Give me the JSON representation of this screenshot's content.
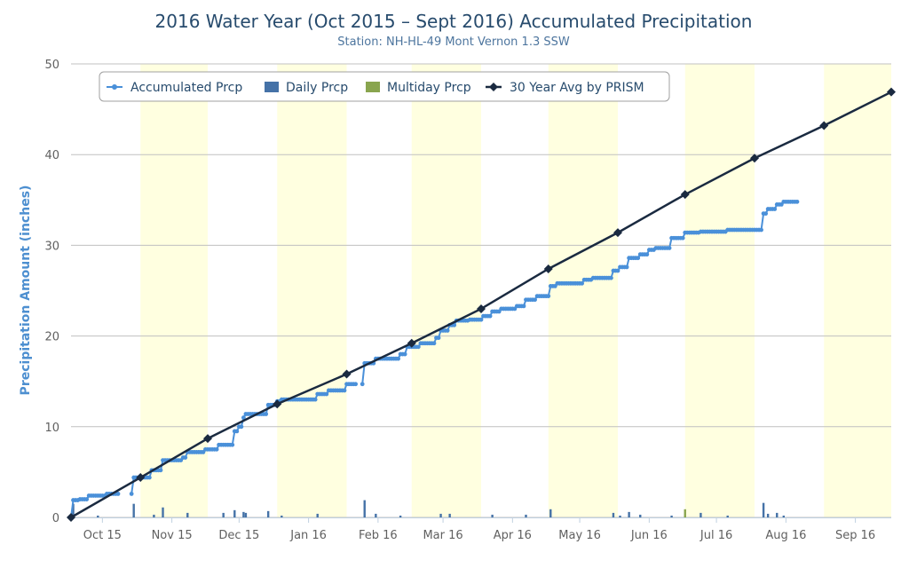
{
  "chart_data": {
    "type": "line",
    "title": "2016 Water Year (Oct 2015 – Sept 2016) Accumulated Precipitation",
    "subtitle": "Station: NH-HL-49 Mont Vernon 1.3 SSW",
    "ylabel": "Precipitation Amount (inches)",
    "ylim": [
      0,
      50
    ],
    "y_ticks": [
      0,
      10,
      20,
      30,
      40,
      50
    ],
    "x_range": [
      "2015-10-01",
      "2016-09-30"
    ],
    "x_ticks": [
      {
        "date": "2015-10-15",
        "label": "Oct 15"
      },
      {
        "date": "2015-11-15",
        "label": "Nov 15"
      },
      {
        "date": "2015-12-15",
        "label": "Dec 15"
      },
      {
        "date": "2016-01-15",
        "label": "Jan 16"
      },
      {
        "date": "2016-02-15",
        "label": "Feb 16"
      },
      {
        "date": "2016-03-15",
        "label": "Mar 16"
      },
      {
        "date": "2016-04-15",
        "label": "Apr 16"
      },
      {
        "date": "2016-05-15",
        "label": "May 16"
      },
      {
        "date": "2016-06-15",
        "label": "Jun 16"
      },
      {
        "date": "2016-07-15",
        "label": "Jul 16"
      },
      {
        "date": "2016-08-15",
        "label": "Aug 16"
      },
      {
        "date": "2016-09-15",
        "label": "Sep 16"
      }
    ],
    "shaded_bands": [
      [
        "2015-11-01",
        "2015-12-01"
      ],
      [
        "2016-01-01",
        "2016-02-01"
      ],
      [
        "2016-03-01",
        "2016-04-01"
      ],
      [
        "2016-05-01",
        "2016-06-01"
      ],
      [
        "2016-07-01",
        "2016-08-01"
      ],
      [
        "2016-09-01",
        "2016-10-01"
      ]
    ],
    "band_color": "#ffffe0",
    "grid": true,
    "legend_position": "top-left",
    "series": [
      {
        "name": "Accumulated Prcp",
        "color": "#4a90d9",
        "steps": [
          [
            "2015-10-01",
            0
          ],
          [
            "2015-10-02",
            1.9
          ],
          [
            "2015-10-05",
            2.0
          ],
          [
            "2015-10-09",
            2.4
          ],
          [
            "2015-10-17",
            2.6
          ],
          [
            "2015-10-29",
            4.4
          ],
          [
            "2015-11-06",
            5.2
          ],
          [
            "2015-11-11",
            6.3
          ],
          [
            "2015-11-20",
            6.6
          ],
          [
            "2015-11-22",
            7.2
          ],
          [
            "2015-11-30",
            7.5
          ],
          [
            "2015-12-06",
            8.0
          ],
          [
            "2015-12-13",
            9.5
          ],
          [
            "2015-12-15",
            10.0
          ],
          [
            "2015-12-17",
            11.0
          ],
          [
            "2015-12-18",
            11.4
          ],
          [
            "2015-12-28",
            12.4
          ],
          [
            "2016-01-01",
            12.8
          ],
          [
            "2016-01-03",
            13.0
          ],
          [
            "2016-01-19",
            13.6
          ],
          [
            "2016-01-24",
            14.0
          ],
          [
            "2016-02-01",
            14.7
          ],
          [
            "2016-02-09",
            17.0
          ],
          [
            "2016-02-14",
            17.5
          ],
          [
            "2016-02-25",
            18.0
          ],
          [
            "2016-02-28",
            18.8
          ],
          [
            "2016-03-05",
            19.2
          ],
          [
            "2016-03-12",
            19.8
          ],
          [
            "2016-03-14",
            20.6
          ],
          [
            "2016-03-18",
            21.2
          ],
          [
            "2016-03-21",
            21.7
          ],
          [
            "2016-03-27",
            21.8
          ],
          [
            "2016-04-02",
            22.2
          ],
          [
            "2016-04-06",
            22.7
          ],
          [
            "2016-04-10",
            23.0
          ],
          [
            "2016-04-17",
            23.3
          ],
          [
            "2016-04-21",
            24.0
          ],
          [
            "2016-04-26",
            24.4
          ],
          [
            "2016-05-02",
            25.5
          ],
          [
            "2016-05-05",
            25.8
          ],
          [
            "2016-05-17",
            26.2
          ],
          [
            "2016-05-21",
            26.4
          ],
          [
            "2016-05-30",
            27.2
          ],
          [
            "2016-06-02",
            27.6
          ],
          [
            "2016-06-06",
            28.6
          ],
          [
            "2016-06-11",
            29.0
          ],
          [
            "2016-06-15",
            29.5
          ],
          [
            "2016-06-18",
            29.7
          ],
          [
            "2016-06-25",
            30.8
          ],
          [
            "2016-07-01",
            31.4
          ],
          [
            "2016-07-08",
            31.5
          ],
          [
            "2016-07-20",
            31.7
          ],
          [
            "2016-08-05",
            33.5
          ],
          [
            "2016-08-07",
            34.0
          ],
          [
            "2016-08-11",
            34.5
          ],
          [
            "2016-08-14",
            34.8
          ],
          [
            "2016-08-20",
            34.8
          ]
        ],
        "gaps": [
          [
            "2015-10-22",
            "2015-10-28"
          ],
          [
            "2016-02-05",
            "2016-02-08"
          ]
        ]
      },
      {
        "name": "Daily Prcp",
        "color": "#4572a7",
        "bars": [
          [
            "2015-10-02",
            1.5
          ],
          [
            "2015-10-13",
            0.2
          ],
          [
            "2015-10-29",
            1.5
          ],
          [
            "2015-11-07",
            0.3
          ],
          [
            "2015-11-11",
            1.1
          ],
          [
            "2015-11-22",
            0.5
          ],
          [
            "2015-12-08",
            0.5
          ],
          [
            "2015-12-13",
            0.8
          ],
          [
            "2015-12-17",
            0.6
          ],
          [
            "2015-12-18",
            0.5
          ],
          [
            "2015-12-28",
            0.7
          ],
          [
            "2016-01-03",
            0.2
          ],
          [
            "2016-01-19",
            0.4
          ],
          [
            "2016-02-09",
            1.9
          ],
          [
            "2016-02-14",
            0.4
          ],
          [
            "2016-02-25",
            0.2
          ],
          [
            "2016-03-14",
            0.4
          ],
          [
            "2016-03-18",
            0.4
          ],
          [
            "2016-04-06",
            0.3
          ],
          [
            "2016-04-21",
            0.3
          ],
          [
            "2016-05-02",
            0.9
          ],
          [
            "2016-05-30",
            0.5
          ],
          [
            "2016-06-02",
            0.2
          ],
          [
            "2016-06-06",
            0.6
          ],
          [
            "2016-06-11",
            0.3
          ],
          [
            "2016-06-25",
            0.2
          ],
          [
            "2016-07-08",
            0.5
          ],
          [
            "2016-07-20",
            0.2
          ],
          [
            "2016-08-05",
            1.6
          ],
          [
            "2016-08-07",
            0.4
          ],
          [
            "2016-08-11",
            0.5
          ],
          [
            "2016-08-14",
            0.2
          ]
        ]
      },
      {
        "name": "Multiday Prcp",
        "color": "#89a54e",
        "bars": [
          [
            "2016-07-01",
            0.9
          ]
        ]
      },
      {
        "name": "30 Year Avg by PRISM",
        "color": "#1a2a40",
        "x": [
          "2015-10-01",
          "2015-11-01",
          "2015-12-01",
          "2016-01-01",
          "2016-02-01",
          "2016-03-01",
          "2016-04-01",
          "2016-05-01",
          "2016-06-01",
          "2016-07-01",
          "2016-08-01",
          "2016-09-01",
          "2016-10-01"
        ],
        "values": [
          0,
          4.4,
          8.7,
          12.5,
          15.8,
          19.2,
          23.0,
          27.4,
          31.4,
          35.6,
          39.6,
          43.2,
          46.9
        ]
      }
    ]
  }
}
